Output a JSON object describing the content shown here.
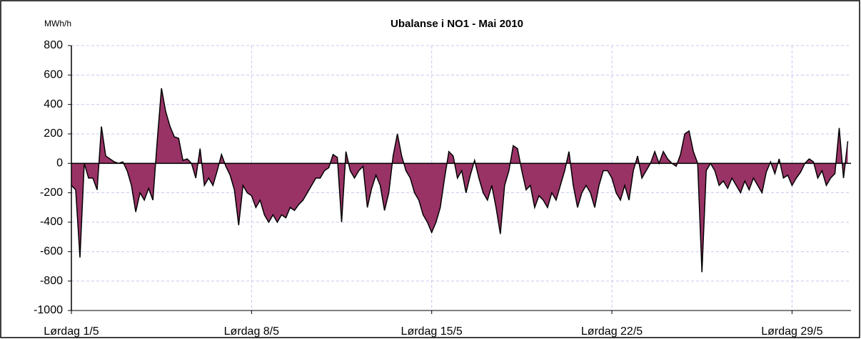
{
  "chart_data": {
    "type": "area",
    "title": "Ubalanse i NO1 -  Mai 2010",
    "y_unit": "MWh/h",
    "x": [
      0,
      4,
      8,
      12,
      16,
      20,
      24,
      28,
      32,
      36,
      40,
      44,
      48,
      52,
      56,
      60,
      64,
      68,
      72,
      76,
      80,
      84,
      88,
      92,
      96,
      100,
      104,
      108,
      112,
      116,
      120,
      124,
      128,
      132,
      136,
      140,
      144,
      148,
      152,
      156,
      160,
      164,
      168,
      172,
      176,
      180,
      184,
      188,
      192,
      196,
      200,
      204,
      208,
      212,
      216,
      220,
      224,
      228,
      232,
      236,
      240,
      244,
      248,
      252,
      256,
      260,
      264,
      268,
      272,
      276,
      280,
      284,
      288,
      292,
      296,
      300,
      304,
      308,
      312,
      316,
      320,
      324,
      328,
      332,
      336,
      340,
      344,
      348,
      352,
      356,
      360,
      364,
      368,
      372,
      376,
      380,
      384,
      388,
      392,
      396,
      400,
      404,
      408,
      412,
      416,
      420,
      424,
      428,
      432,
      436,
      440,
      444,
      448,
      452,
      456,
      460,
      464,
      468,
      472,
      476,
      480,
      484,
      488,
      492,
      496,
      500,
      504,
      508,
      512,
      516,
      520,
      524,
      528,
      532,
      536,
      540,
      544,
      548,
      552,
      556,
      560,
      564,
      568,
      572,
      576,
      580,
      584,
      588,
      592,
      596,
      600,
      604,
      608,
      612,
      616,
      620,
      624,
      628,
      632,
      636,
      640,
      644,
      648,
      652,
      656,
      660,
      664,
      668,
      672,
      676,
      680,
      684,
      688,
      692,
      696,
      700,
      704,
      708,
      712,
      716,
      720,
      724
    ],
    "series": [
      {
        "name": "Ubalanse",
        "color": "#993366",
        "values": [
          -150,
          -180,
          -640,
          0,
          -100,
          -100,
          -180,
          250,
          50,
          30,
          10,
          0,
          10,
          -50,
          -150,
          -330,
          -200,
          -250,
          -170,
          -250,
          150,
          510,
          350,
          250,
          180,
          170,
          20,
          30,
          0,
          -100,
          100,
          -150,
          -100,
          -150,
          -50,
          60,
          -20,
          -80,
          -180,
          -420,
          -150,
          -200,
          -220,
          -300,
          -250,
          -350,
          -400,
          -350,
          -400,
          -350,
          -370,
          -300,
          -320,
          -280,
          -250,
          -200,
          -150,
          -100,
          -100,
          -50,
          -30,
          60,
          40,
          -400,
          80,
          -50,
          -100,
          -50,
          -20,
          -300,
          -170,
          -80,
          -150,
          -320,
          -200,
          50,
          200,
          50,
          -50,
          -100,
          -200,
          -250,
          -350,
          -400,
          -470,
          -400,
          -300,
          -100,
          80,
          50,
          -100,
          -50,
          -200,
          -80,
          20,
          -100,
          -200,
          -250,
          -150,
          -300,
          -480,
          -150,
          -50,
          120,
          100,
          -50,
          -180,
          -150,
          -300,
          -220,
          -250,
          -300,
          -200,
          -250,
          -150,
          -50,
          80,
          -150,
          -300,
          -200,
          -150,
          -200,
          -300,
          -150,
          -50,
          -50,
          -100,
          -200,
          -250,
          -150,
          -250,
          -50,
          50,
          -100,
          -50,
          0,
          80,
          0,
          80,
          30,
          0,
          -20,
          60,
          200,
          220,
          80,
          0,
          -740,
          -50,
          0,
          -50,
          -150,
          -120,
          -170,
          -100,
          -150,
          -200,
          -120,
          -180,
          -100,
          -150,
          -200,
          -60,
          10,
          -70,
          30,
          -100,
          -80,
          -150,
          -100,
          -60,
          0,
          30,
          10,
          -100,
          -50,
          -150,
          -100,
          -70,
          240,
          -100,
          150
        ]
      }
    ],
    "xlim": [
      0,
      727
    ],
    "xticks": [
      {
        "value": 0,
        "label": "Lørdag 1/5"
      },
      {
        "value": 168,
        "label": "Lørdag 8/5"
      },
      {
        "value": 336,
        "label": "Lørdag  15/5"
      },
      {
        "value": 504,
        "label": "Lørdag  22/5"
      },
      {
        "value": 672,
        "label": "Lørdag 29/5"
      }
    ],
    "ylim": [
      -1000,
      800
    ],
    "yticks": [
      -1000,
      -800,
      -600,
      -400,
      -200,
      0,
      200,
      400,
      600,
      800
    ],
    "grid": true
  }
}
